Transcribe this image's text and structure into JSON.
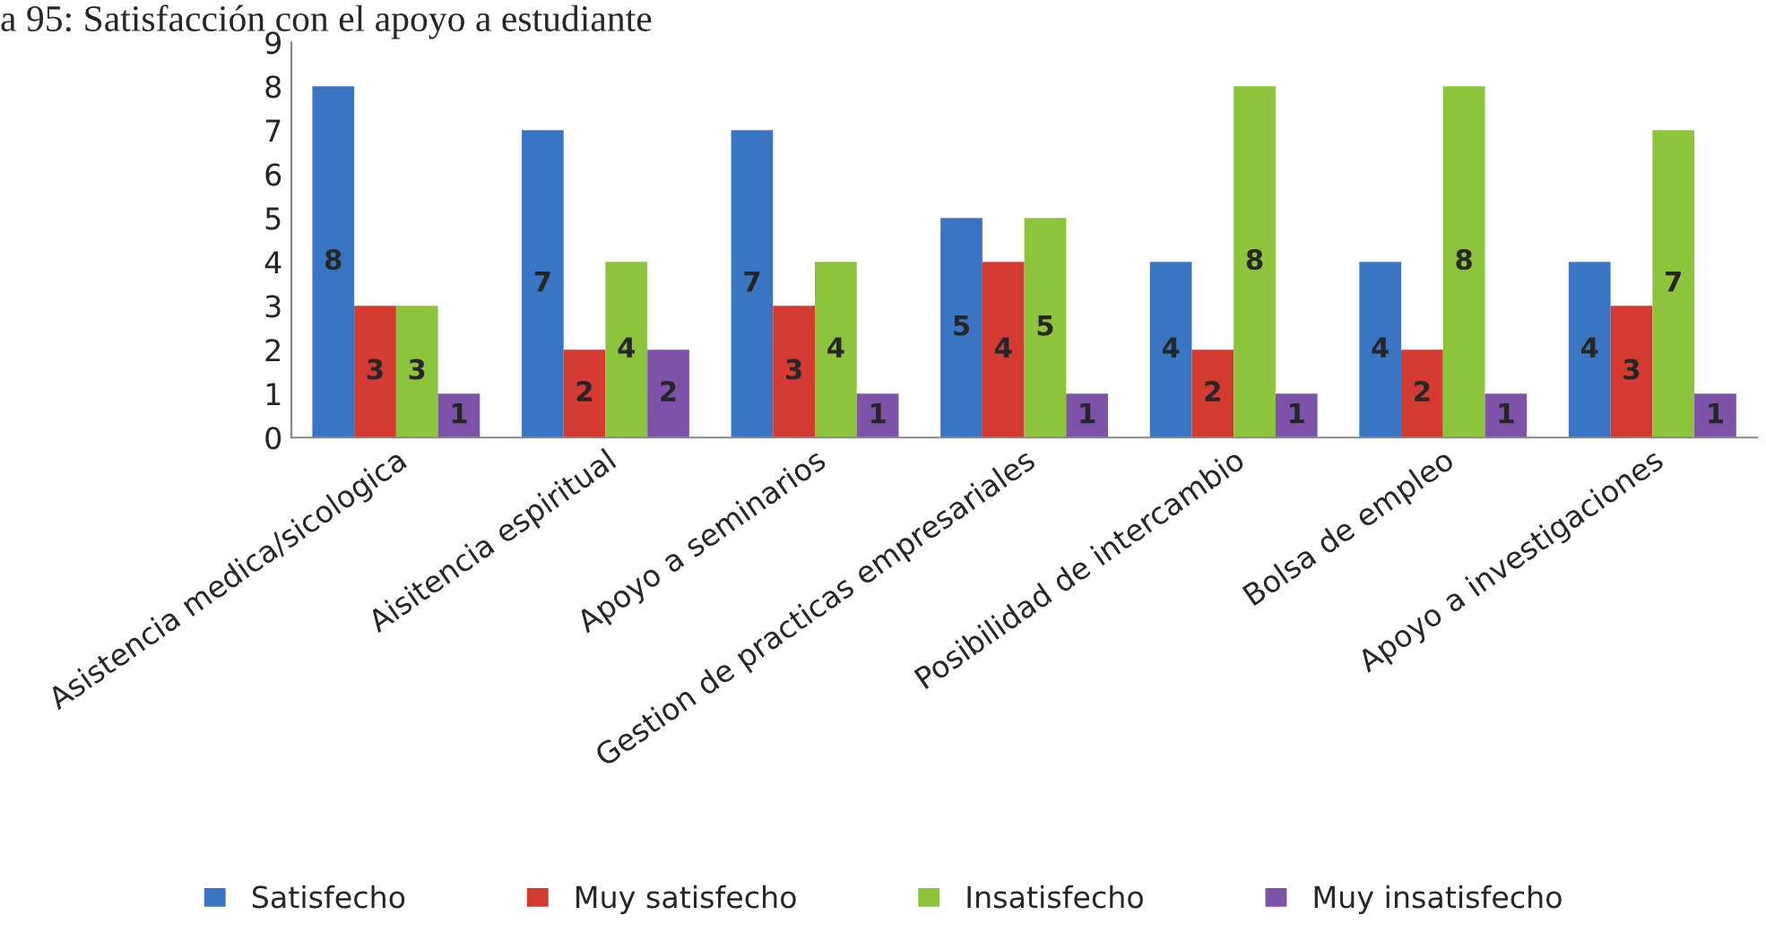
{
  "chart_data": {
    "type": "bar",
    "title": "a 95: Satisfacción con el apoyo a estudiante",
    "categories": [
      "Asistencia medica/sicologica",
      "Aisitencia espiritual",
      "Apoyo a seminarios",
      "Gestion de practicas empresariales",
      "Posibilidad de intercambio",
      "Bolsa de empleo",
      "Apoyo a investigaciones"
    ],
    "series": [
      {
        "name": "Satisfecho",
        "color": "#3a75c4",
        "values": [
          8,
          7,
          7,
          5,
          4,
          4,
          4
        ]
      },
      {
        "name": "Muy satisfecho",
        "color": "#d23a32",
        "values": [
          3,
          2,
          3,
          4,
          2,
          2,
          3
        ]
      },
      {
        "name": "Insatisfecho",
        "color": "#8cc43c",
        "values": [
          3,
          4,
          4,
          5,
          8,
          8,
          7
        ]
      },
      {
        "name": "Muy insatisfecho",
        "color": "#7d52a8",
        "values": [
          1,
          2,
          1,
          1,
          1,
          1,
          1
        ]
      }
    ],
    "ylim": [
      0,
      9
    ],
    "yticks": [
      0,
      1,
      2,
      3,
      4,
      5,
      6,
      7,
      8,
      9
    ],
    "grid": false,
    "legend": "bottom",
    "data_labels": true
  }
}
